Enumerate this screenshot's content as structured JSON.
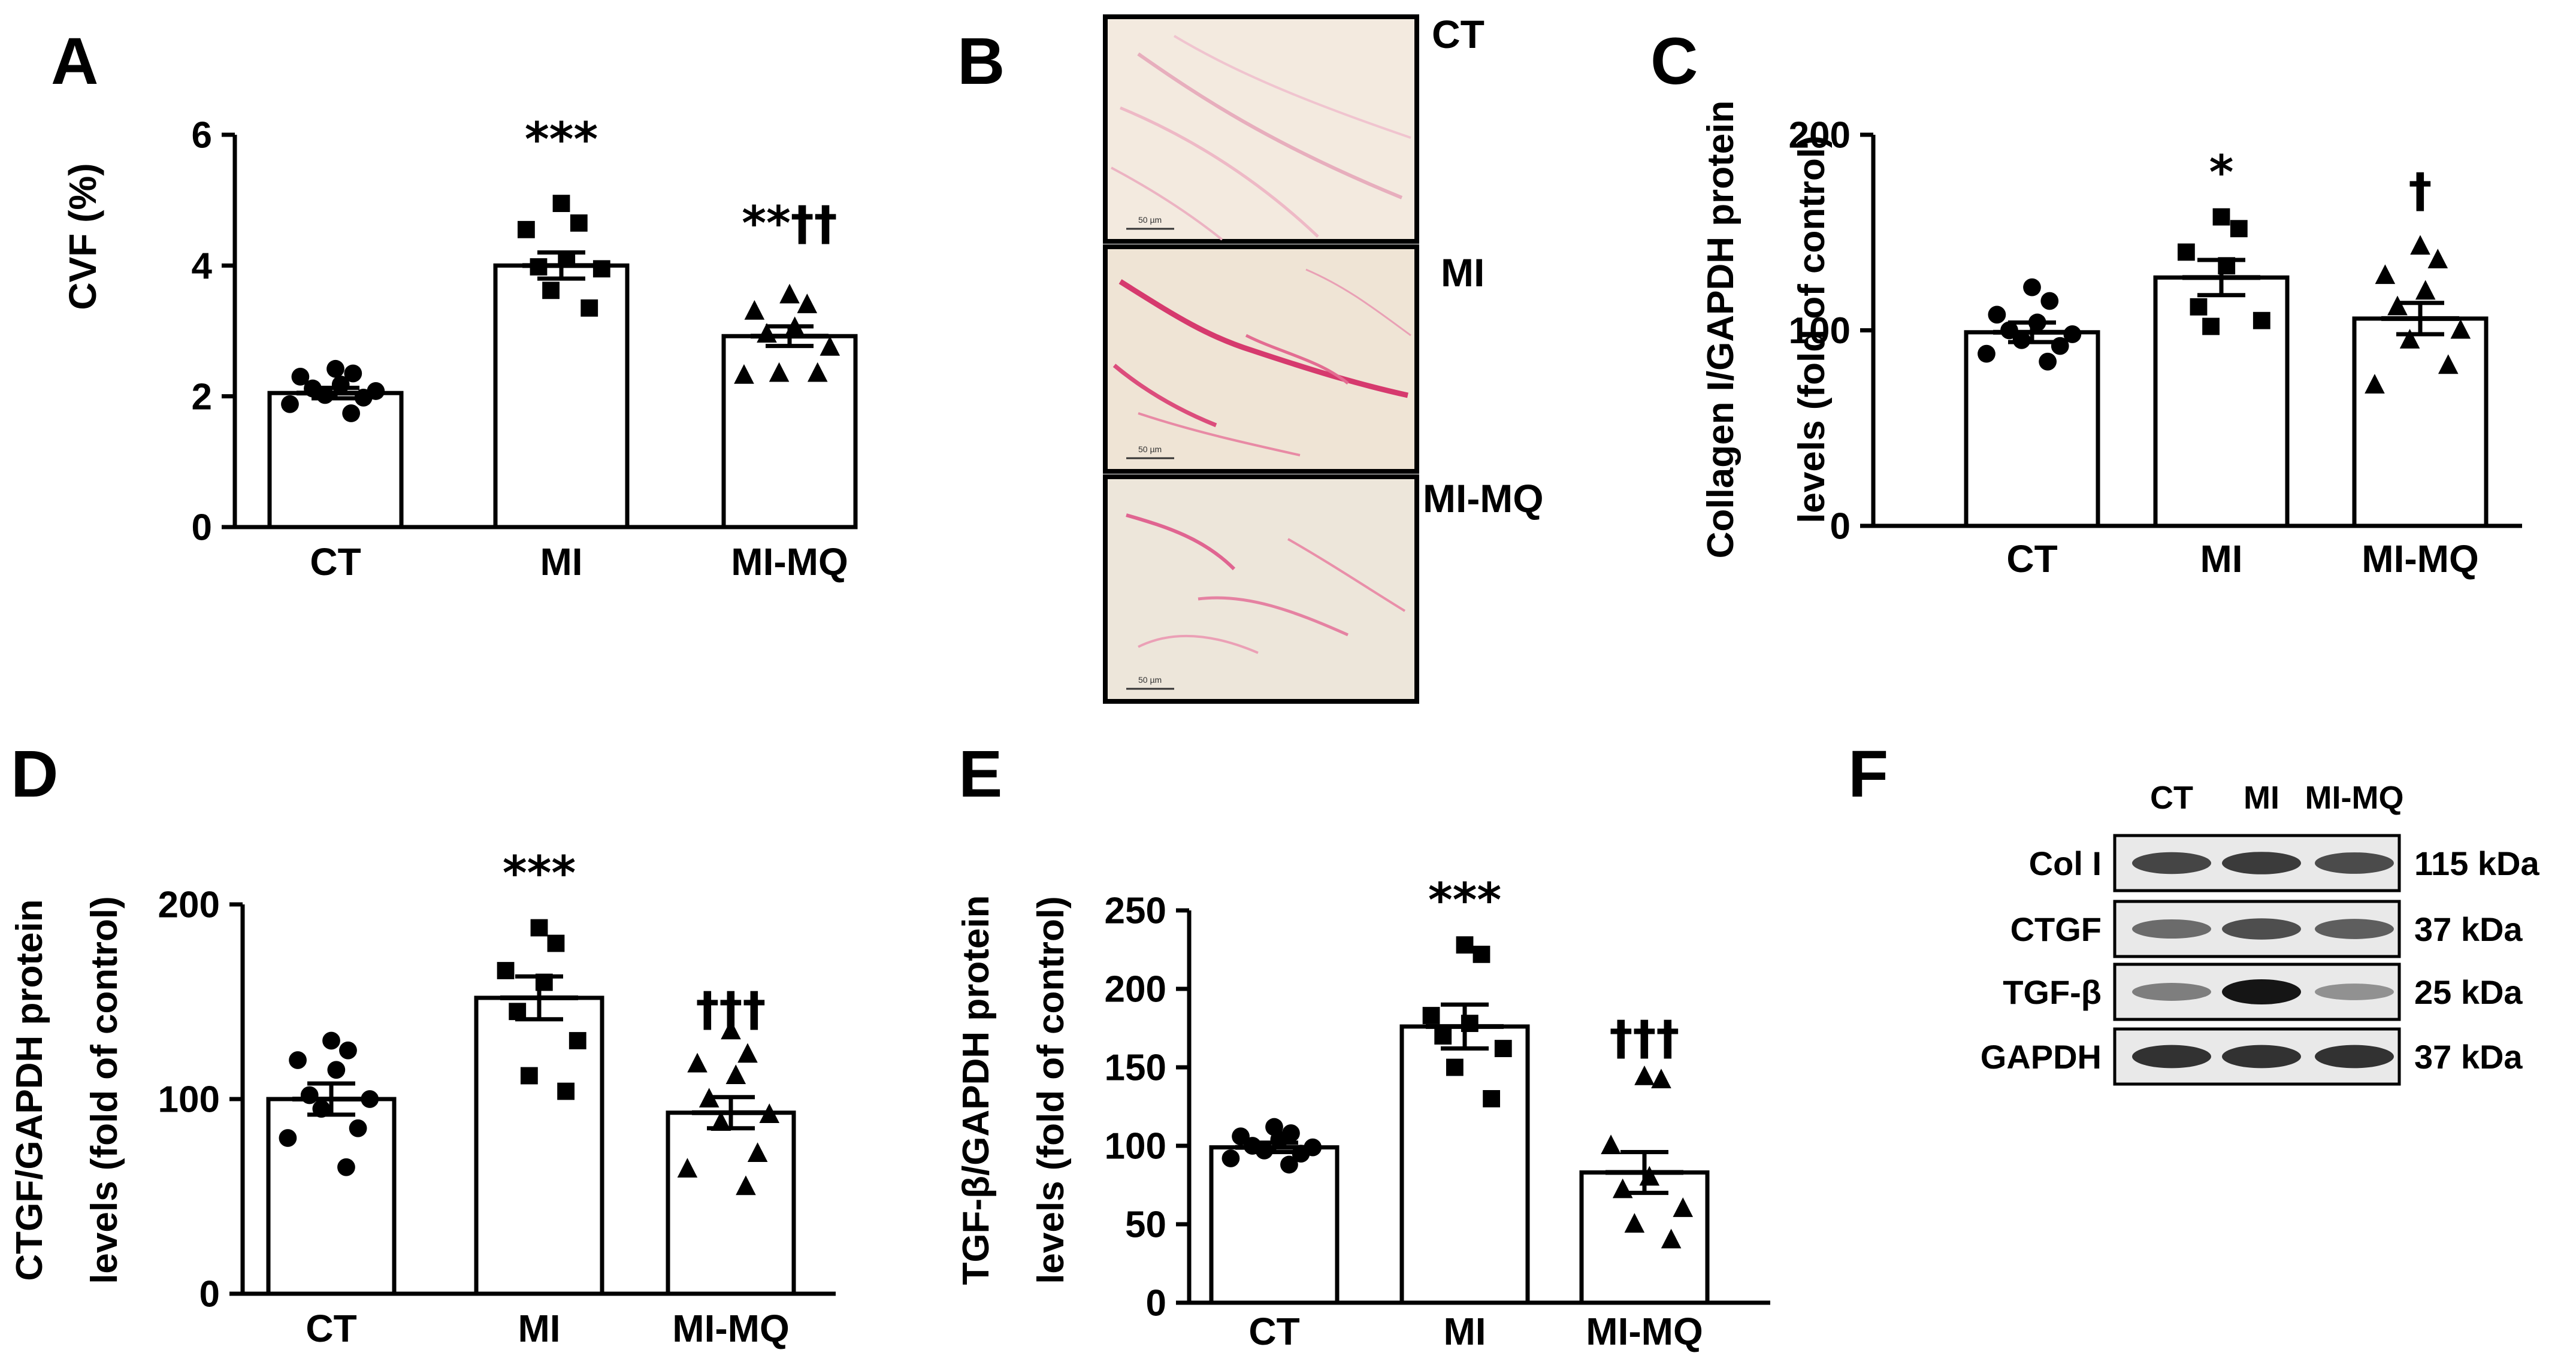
{
  "chart_data": [
    {
      "panel": "A",
      "type": "bar",
      "title": "",
      "xlabel": "",
      "ylabel": "CVF (%)",
      "ylim": [
        0,
        6
      ],
      "yticks": [
        0,
        2,
        4,
        6
      ],
      "categories": [
        "CT",
        "MI",
        "MI-MQ"
      ],
      "values": [
        2.05,
        4.0,
        2.92
      ],
      "sem": [
        0.08,
        0.2,
        0.15
      ],
      "significance": [
        "",
        "***",
        "**††"
      ],
      "markers": [
        "circle",
        "square",
        "triangle"
      ],
      "points": [
        [
          2.42,
          2.35,
          2.3,
          2.18,
          2.12,
          2.08,
          2.02,
          1.98,
          1.88,
          1.74
        ],
        [
          4.95,
          4.65,
          4.55,
          4.1,
          3.98,
          3.95,
          3.62,
          3.35
        ],
        [
          3.55,
          3.4,
          3.3,
          3.05,
          2.95,
          2.75,
          2.35,
          2.35,
          2.32
        ]
      ]
    },
    {
      "panel": "C",
      "type": "bar",
      "title": "",
      "xlabel": "",
      "ylabel": [
        "Collagen I/GAPDH  protein",
        "levels (fold of control)"
      ],
      "ylim": [
        0,
        200
      ],
      "yticks": [
        0,
        100,
        200
      ],
      "categories": [
        "CT",
        "MI",
        "MI-MQ"
      ],
      "values": [
        99,
        127,
        106
      ],
      "sem": [
        5,
        9,
        8
      ],
      "significance": [
        "",
        "*",
        "†"
      ],
      "markers": [
        "circle",
        "square",
        "triangle"
      ],
      "points": [
        [
          122,
          115,
          108,
          104,
          100,
          98,
          95,
          92,
          88,
          84
        ],
        [
          158,
          152,
          140,
          133,
          112,
          105,
          102
        ],
        [
          143,
          136,
          128,
          120,
          112,
          100,
          95,
          82,
          72
        ]
      ]
    },
    {
      "panel": "D",
      "type": "bar",
      "title": "",
      "xlabel": "",
      "ylabel": [
        "CTGF/GAPDH protein",
        "levels (fold of control)"
      ],
      "ylim": [
        0,
        200
      ],
      "yticks": [
        0,
        100,
        200
      ],
      "categories": [
        "CT",
        "MI",
        "MI-MQ"
      ],
      "values": [
        100,
        152,
        93
      ],
      "sem": [
        8,
        11,
        8
      ],
      "significance": [
        "",
        "***",
        "†††"
      ],
      "markers": [
        "circle",
        "square",
        "triangle"
      ],
      "points": [
        [
          130,
          125,
          120,
          115,
          102,
          100,
          95,
          85,
          80,
          65
        ],
        [
          188,
          180,
          166,
          160,
          145,
          130,
          112,
          104
        ],
        [
          135,
          123,
          118,
          112,
          100,
          92,
          88,
          72,
          64,
          55
        ]
      ]
    },
    {
      "panel": "E",
      "type": "bar",
      "title": "",
      "xlabel": "",
      "ylabel": [
        "TGF-β/GAPDH protein",
        "levels (fold of control)"
      ],
      "ylim": [
        0,
        250
      ],
      "yticks": [
        0,
        50,
        100,
        150,
        200,
        250
      ],
      "categories": [
        "CT",
        "MI",
        "MI-MQ"
      ],
      "values": [
        99,
        176,
        83
      ],
      "sem": [
        3,
        14,
        13
      ],
      "significance": [
        "",
        "***",
        "†††"
      ],
      "markers": [
        "circle",
        "square",
        "triangle"
      ],
      "points": [
        [
          112,
          108,
          106,
          104,
          100,
          99,
          97,
          95,
          92,
          88
        ],
        [
          228,
          222,
          183,
          178,
          170,
          162,
          150,
          130
        ],
        [
          144,
          142,
          100,
          80,
          72,
          60,
          50,
          40
        ]
      ]
    }
  ],
  "histology": {
    "panel": "B",
    "images": [
      {
        "label": "CT",
        "scale_bar": "50 µm"
      },
      {
        "label": "MI",
        "scale_bar": "50 µm"
      },
      {
        "label": "MI-MQ",
        "scale_bar": "50 µm"
      }
    ]
  },
  "western_blot": {
    "panel": "F",
    "lanes": [
      "CT",
      "MI",
      "MI-MQ"
    ],
    "rows": [
      {
        "protein": "Col I",
        "weight": "115 kDa",
        "intensity": [
          0.75,
          0.8,
          0.72
        ]
      },
      {
        "protein": "CTGF",
        "weight": "37 kDa",
        "intensity": [
          0.55,
          0.7,
          0.62
        ]
      },
      {
        "protein": "TGF-β",
        "weight": "25 kDa",
        "intensity": [
          0.45,
          1.0,
          0.35
        ]
      },
      {
        "protein": "GAPDH",
        "weight": "37 kDa",
        "intensity": [
          0.85,
          0.85,
          0.85
        ]
      }
    ]
  },
  "colors": {
    "bar_fill": "#ffffff",
    "ink": "#000000",
    "stain": "#d63a6e",
    "tissue": "#f1e6da",
    "membrane": "#e9e9e9"
  }
}
